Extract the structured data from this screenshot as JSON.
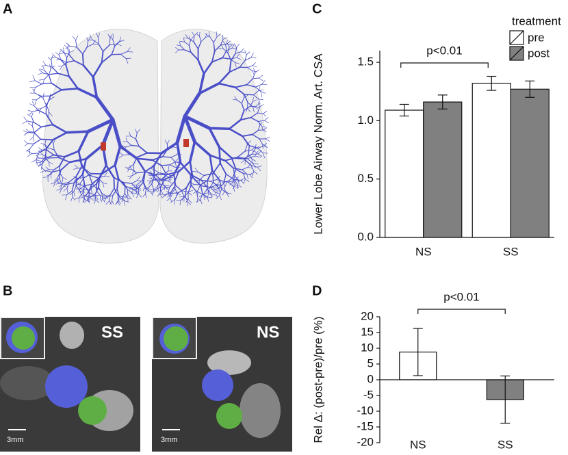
{
  "panels": {
    "a": "A",
    "b": "B",
    "c": "C",
    "d": "D"
  },
  "images": {
    "left_label": "SS",
    "right_label": "NS",
    "left_scale": "3mm",
    "right_scale": "3mm"
  },
  "chart_data": [
    {
      "type": "grouped-bar",
      "ylabel": "Lower Lobe Airway Norm. Art. CSA",
      "categories": [
        "NS",
        "SS"
      ],
      "series": [
        {
          "name": "pre",
          "color": "#ffffff",
          "values": [
            1.09,
            1.32
          ],
          "errors": [
            0.05,
            0.06
          ]
        },
        {
          "name": "post",
          "color": "#808080",
          "values": [
            1.16,
            1.27
          ],
          "errors": [
            0.06,
            0.07
          ]
        }
      ],
      "ylim": [
        0,
        1.6
      ],
      "yticks": [
        {
          "value": 0,
          "label": "0.0"
        },
        {
          "value": 0.5,
          "label": "0.5"
        },
        {
          "value": 1,
          "label": "1.0"
        },
        {
          "value": 1.5,
          "label": "1.5"
        }
      ],
      "legend_title": "treatment",
      "legend": "top-right",
      "annotation": "p<0.01"
    },
    {
      "type": "bar",
      "ylabel": "Rel Δ: (post-pre)/pre (%)",
      "categories": [
        "NS",
        "SS"
      ],
      "values": [
        8.8,
        -6.3
      ],
      "errors": [
        7.5,
        7.5
      ],
      "colors": [
        "#ffffff",
        "#808080"
      ],
      "ylim": [
        -20,
        20
      ],
      "yticks": [
        -20,
        -15,
        -10,
        -5,
        0,
        5,
        10,
        15,
        20
      ],
      "annotation": "p<0.01"
    }
  ]
}
